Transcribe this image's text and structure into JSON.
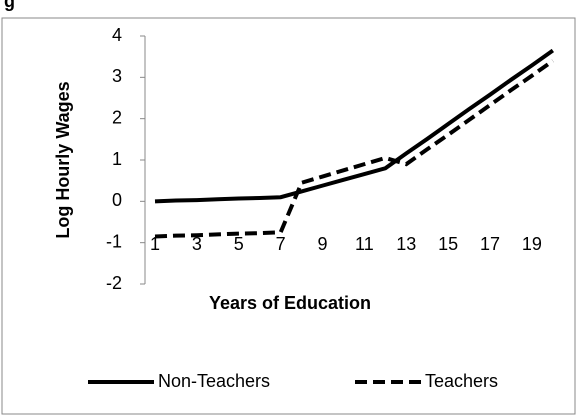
{
  "chart_data": {
    "type": "line",
    "title": "g",
    "xlabel": "Years of Education",
    "ylabel": "Log Hourly Wages",
    "categories": [
      1,
      null,
      3,
      null,
      5,
      null,
      7,
      null,
      9,
      null,
      11,
      null,
      13,
      null,
      15,
      null,
      17,
      null,
      19,
      null
    ],
    "series": [
      {
        "name": "Non-Teachers",
        "color": "#000000",
        "dash": false,
        "values": [
          0,
          0.02,
          0.03,
          0.05,
          0.07,
          0.08,
          0.1,
          0.24,
          0.38,
          0.52,
          0.66,
          0.8,
          1.16,
          1.51,
          1.87,
          2.23,
          2.58,
          2.94,
          3.29,
          3.65
        ]
      },
      {
        "name": "Teachers",
        "color": "#000000",
        "dash": true,
        "values": [
          -0.85,
          -0.83,
          -0.82,
          -0.8,
          -0.78,
          -0.77,
          -0.75,
          0.45,
          0.6,
          0.75,
          0.9,
          1.05,
          0.9,
          1.26,
          1.61,
          1.97,
          2.33,
          2.69,
          3.04,
          3.4
        ]
      }
    ],
    "ylim": [
      -2,
      4
    ],
    "yticks": [
      -2,
      -1,
      0,
      1,
      2,
      3,
      4
    ],
    "grid": false,
    "legend": "bottom"
  }
}
